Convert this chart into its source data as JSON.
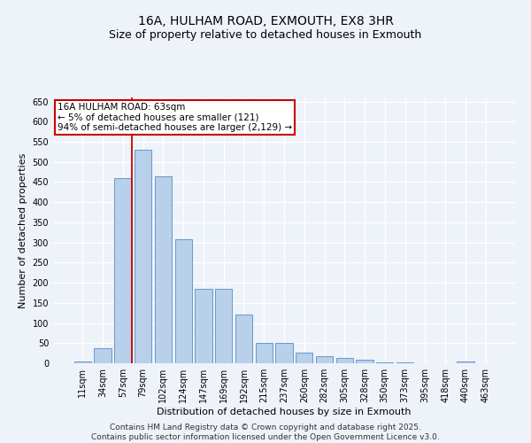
{
  "title1": "16A, HULHAM ROAD, EXMOUTH, EX8 3HR",
  "title2": "Size of property relative to detached houses in Exmouth",
  "xlabel": "Distribution of detached houses by size in Exmouth",
  "ylabel": "Number of detached properties",
  "categories": [
    "11sqm",
    "34sqm",
    "57sqm",
    "79sqm",
    "102sqm",
    "124sqm",
    "147sqm",
    "169sqm",
    "192sqm",
    "215sqm",
    "237sqm",
    "260sqm",
    "282sqm",
    "305sqm",
    "328sqm",
    "350sqm",
    "373sqm",
    "395sqm",
    "418sqm",
    "440sqm",
    "463sqm"
  ],
  "values": [
    5,
    37,
    460,
    530,
    465,
    308,
    185,
    185,
    120,
    50,
    50,
    27,
    17,
    13,
    8,
    3,
    3,
    0,
    0,
    5,
    0
  ],
  "bar_color": "#b8d0ea",
  "bar_edge_color": "#6699cc",
  "vline_color": "#cc0000",
  "vline_x_index": 2,
  "annotation_line1": "16A HULHAM ROAD: 63sqm",
  "annotation_line2": "← 5% of detached houses are smaller (121)",
  "annotation_line3": "94% of semi-detached houses are larger (2,129) →",
  "annotation_box_color": "#ffffff",
  "annotation_box_edge": "#cc0000",
  "ylim": [
    0,
    660
  ],
  "yticks": [
    0,
    50,
    100,
    150,
    200,
    250,
    300,
    350,
    400,
    450,
    500,
    550,
    600,
    650
  ],
  "footer_text": "Contains HM Land Registry data © Crown copyright and database right 2025.\nContains public sector information licensed under the Open Government Licence v3.0.",
  "background_color": "#eef2f9",
  "grid_color": "#ffffff",
  "title_fontsize": 10,
  "subtitle_fontsize": 9,
  "axis_label_fontsize": 8,
  "tick_fontsize": 7,
  "annotation_fontsize": 7.5,
  "footer_fontsize": 6.5
}
